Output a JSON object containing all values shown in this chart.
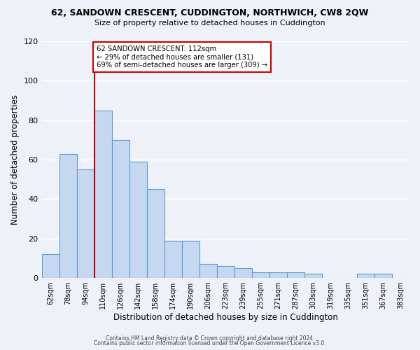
{
  "title": "62, SANDOWN CRESCENT, CUDDINGTON, NORTHWICH, CW8 2QW",
  "subtitle": "Size of property relative to detached houses in Cuddington",
  "xlabel": "Distribution of detached houses by size in Cuddington",
  "ylabel": "Number of detached properties",
  "bin_labels": [
    "62sqm",
    "78sqm",
    "94sqm",
    "110sqm",
    "126sqm",
    "142sqm",
    "158sqm",
    "174sqm",
    "190sqm",
    "206sqm",
    "223sqm",
    "239sqm",
    "255sqm",
    "271sqm",
    "287sqm",
    "303sqm",
    "319sqm",
    "335sqm",
    "351sqm",
    "367sqm",
    "383sqm"
  ],
  "bar_values": [
    12,
    63,
    55,
    85,
    70,
    59,
    45,
    19,
    19,
    7,
    6,
    5,
    3,
    3,
    3,
    2,
    0,
    0,
    2,
    2,
    0
  ],
  "bar_color": "#c5d8f0",
  "bar_edge_color": "#5b9bd5",
  "property_line_x": 2.5,
  "annotation_text": "62 SANDOWN CRESCENT: 112sqm\n← 29% of detached houses are smaller (131)\n69% of semi-detached houses are larger (309) →",
  "annotation_box_color": "#ffffff",
  "annotation_box_edge": "#cc0000",
  "vline_color": "#cc0000",
  "ylim": [
    0,
    120
  ],
  "yticks": [
    0,
    20,
    40,
    60,
    80,
    100,
    120
  ],
  "background_color": "#eef2f8",
  "footer_line1": "Contains HM Land Registry data © Crown copyright and database right 2024.",
  "footer_line2": "Contains public sector information licensed under the Open Government Licence v3.0."
}
